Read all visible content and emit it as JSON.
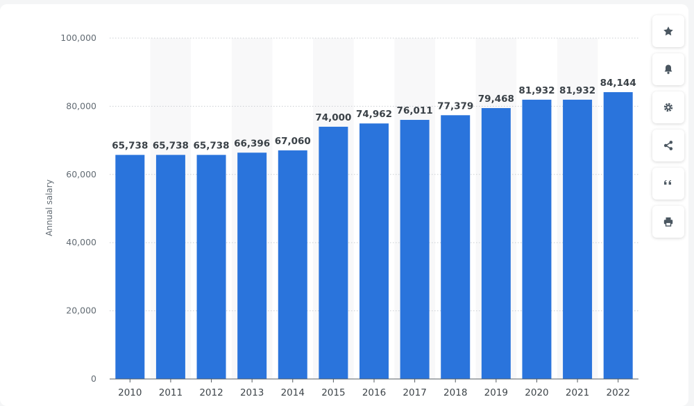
{
  "chart_data": {
    "type": "bar",
    "categories": [
      "2010",
      "2011",
      "2012",
      "2013",
      "2014",
      "2015",
      "2016",
      "2017",
      "2018",
      "2019",
      "2020",
      "2021",
      "2022"
    ],
    "values": [
      65738,
      65738,
      65738,
      66396,
      67060,
      74000,
      74962,
      76011,
      77379,
      79468,
      81932,
      81932,
      84144
    ],
    "value_labels": [
      "65,738",
      "65,738",
      "65,738",
      "66,396",
      "67,060",
      "74,000",
      "74,962",
      "76,011",
      "77,379",
      "79,468",
      "81,932",
      "81,932",
      "84,144"
    ],
    "title": "",
    "xlabel": "",
    "ylabel": "Annual salary",
    "ylim": [
      0,
      100000
    ],
    "yticks": [
      0,
      20000,
      40000,
      60000,
      80000,
      100000
    ],
    "ytick_labels": [
      "0",
      "20,000",
      "40,000",
      "60,000",
      "80,000",
      "100,000"
    ],
    "grid": true,
    "bar_color": "#2a74dc"
  },
  "toolbar": [
    {
      "icon": "star-icon"
    },
    {
      "icon": "bell-icon"
    },
    {
      "icon": "gear-icon"
    },
    {
      "icon": "share-icon"
    },
    {
      "icon": "quote-icon"
    },
    {
      "icon": "print-icon"
    }
  ]
}
